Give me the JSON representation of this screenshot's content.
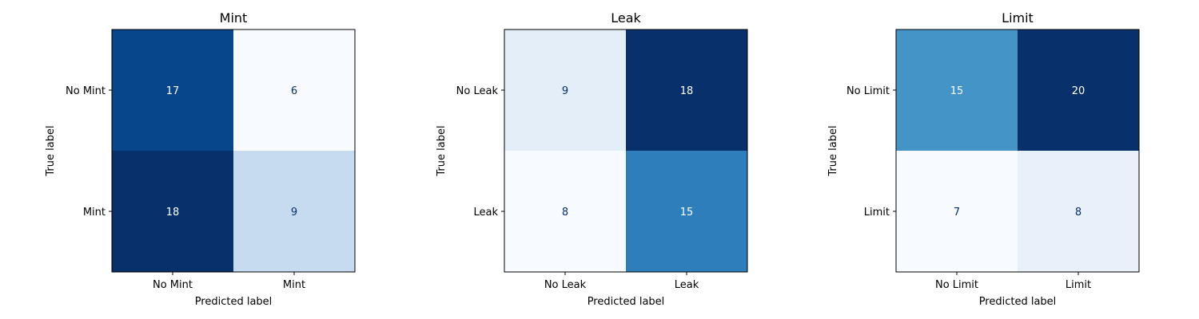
{
  "chart_data": [
    {
      "type": "heatmap",
      "title": "Mint",
      "xlabel": "Predicted label",
      "ylabel": "True label",
      "x_categories": [
        "No Mint",
        "Mint"
      ],
      "y_categories": [
        "No Mint",
        "Mint"
      ],
      "values": [
        [
          17,
          6
        ],
        [
          18,
          9
        ]
      ],
      "colormap": "Blues",
      "grid": false
    },
    {
      "type": "heatmap",
      "title": "Leak",
      "xlabel": "Predicted label",
      "ylabel": "True label",
      "x_categories": [
        "No Leak",
        "Leak"
      ],
      "y_categories": [
        "No Leak",
        "Leak"
      ],
      "values": [
        [
          9,
          18
        ],
        [
          8,
          15
        ]
      ],
      "colormap": "Blues",
      "grid": false
    },
    {
      "type": "heatmap",
      "title": "Limit",
      "xlabel": "Predicted label",
      "ylabel": "True label",
      "x_categories": [
        "No Limit",
        "Limit"
      ],
      "y_categories": [
        "No Limit",
        "Limit"
      ],
      "values": [
        [
          15,
          20
        ],
        [
          7,
          8
        ]
      ],
      "colormap": "Blues",
      "grid": false
    }
  ]
}
